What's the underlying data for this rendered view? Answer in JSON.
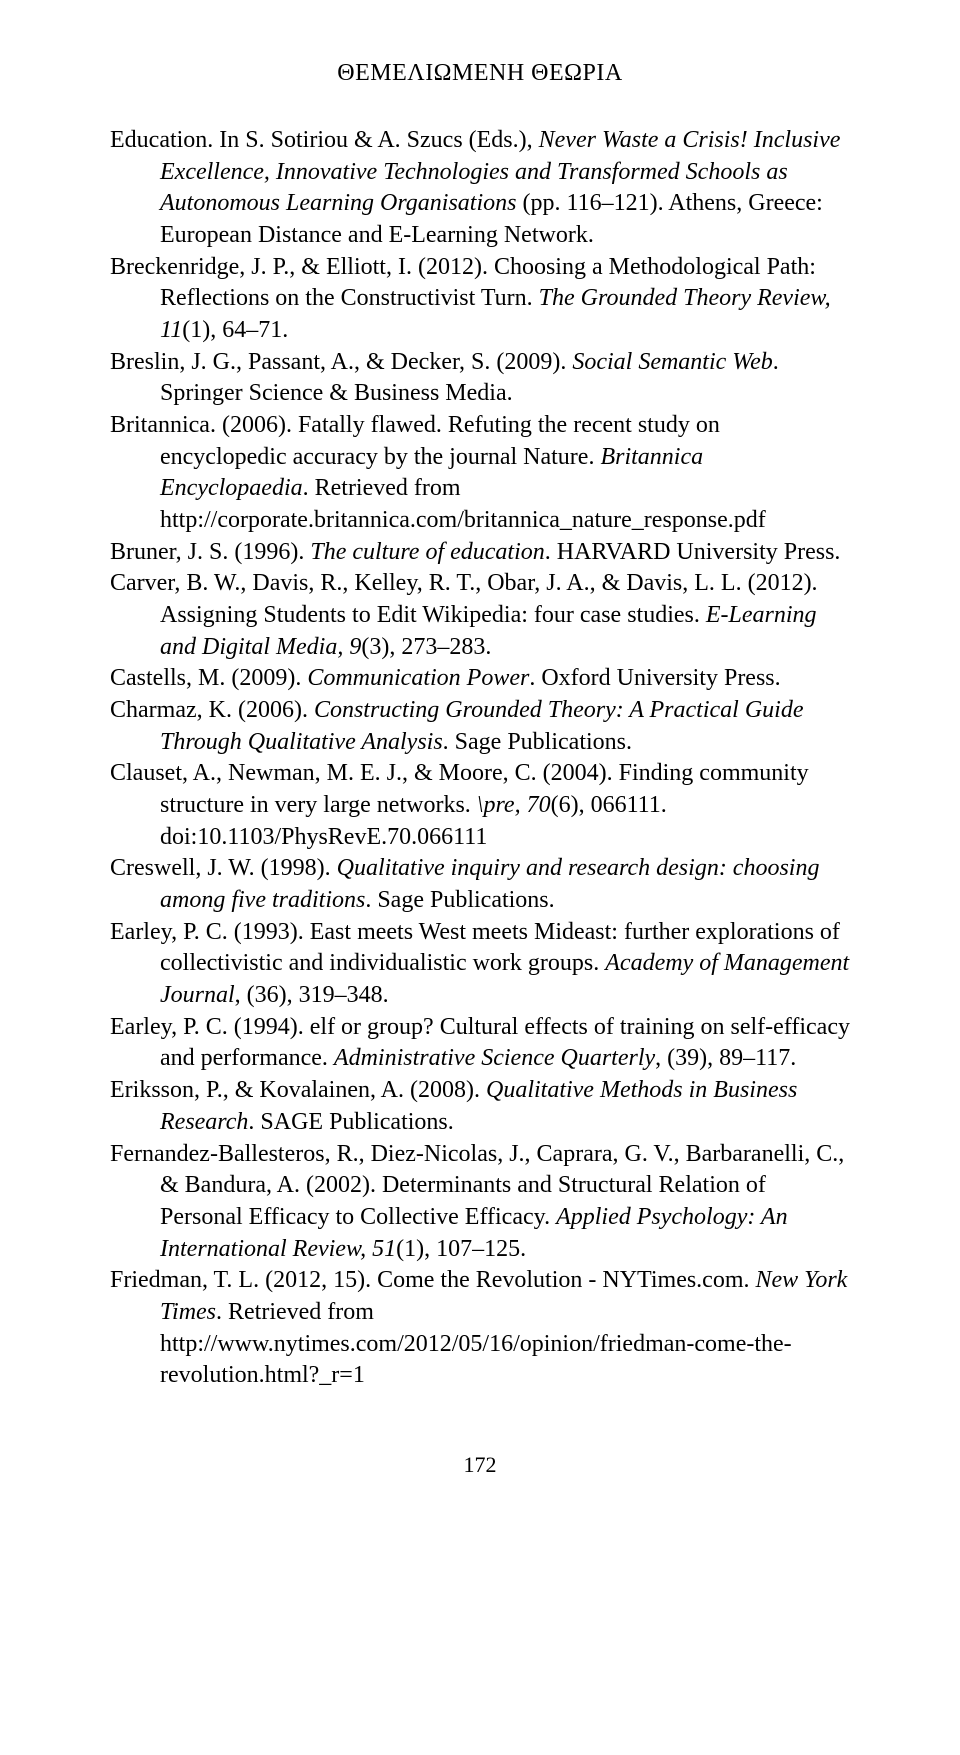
{
  "header": "ΘΕΜΕΛΙΩΜΕΝΗ ΘΕΩΡΙΑ",
  "page_number": "172",
  "references": [
    {
      "parts": [
        {
          "t": "Education. In S. Sotiriou & A. Szucs (Eds.), ",
          "i": false
        },
        {
          "t": "Never Waste a Crisis! Inclusive Excellence, Innovative Technologies and Transformed Schools as Autonomous Learning Organisations",
          "i": true
        },
        {
          "t": " (pp. 116–121). Athens, Greece: European Distance and E-Learning Network.",
          "i": false
        }
      ]
    },
    {
      "parts": [
        {
          "t": "Breckenridge, J. P., & Elliott, I. (2012). Choosing a Methodological Path: Reflections on the Constructivist Turn. ",
          "i": false
        },
        {
          "t": "The Grounded Theory Review, 11",
          "i": true
        },
        {
          "t": "(1), 64–71.",
          "i": false
        }
      ]
    },
    {
      "parts": [
        {
          "t": "Breslin, J. G., Passant, A., & Decker, S. (2009). ",
          "i": false
        },
        {
          "t": "Social Semantic Web",
          "i": true
        },
        {
          "t": ". Springer Science & Business Media.",
          "i": false
        }
      ]
    },
    {
      "parts": [
        {
          "t": "Britannica. (2006). Fatally flawed. Refuting the recent study on encyclopedic accuracy by the journal Nature. ",
          "i": false
        },
        {
          "t": "Britannica Encyclopaedia",
          "i": true
        },
        {
          "t": ". Retrieved from http://corporate.britannica.com/britannica_nature_response.pdf",
          "i": false
        }
      ]
    },
    {
      "parts": [
        {
          "t": "Bruner, J. S. (1996). ",
          "i": false
        },
        {
          "t": "The culture of education",
          "i": true
        },
        {
          "t": ". HARVARD University Press.",
          "i": false
        }
      ]
    },
    {
      "parts": [
        {
          "t": "Carver, B. W., Davis, R., Kelley, R. T., Obar, J. A., & Davis, L. L. (2012). Assigning Students to Edit Wikipedia: four case studies. ",
          "i": false
        },
        {
          "t": "E-Learning and Digital Media, 9",
          "i": true
        },
        {
          "t": "(3), 273–283.",
          "i": false
        }
      ]
    },
    {
      "parts": [
        {
          "t": "Castells, M. (2009). ",
          "i": false
        },
        {
          "t": "Communication Power",
          "i": true
        },
        {
          "t": ". Oxford University Press.",
          "i": false
        }
      ]
    },
    {
      "parts": [
        {
          "t": "Charmaz, K. (2006). ",
          "i": false
        },
        {
          "t": "Constructing Grounded Theory: A Practical Guide Through Qualitative Analysis",
          "i": true
        },
        {
          "t": ". Sage Publications.",
          "i": false
        }
      ]
    },
    {
      "parts": [
        {
          "t": "Clauset, A., Newman, M. E. J., & Moore, C. (2004). Finding community structure in very large networks. ",
          "i": false
        },
        {
          "t": "\\pre, 70",
          "i": true
        },
        {
          "t": "(6), 066111. doi:10.1103/PhysRevE.70.066111",
          "i": false
        }
      ]
    },
    {
      "parts": [
        {
          "t": "Creswell, J. W. (1998). ",
          "i": false
        },
        {
          "t": "Qualitative inquiry and research design: choosing among five traditions",
          "i": true
        },
        {
          "t": ". Sage Publications.",
          "i": false
        }
      ]
    },
    {
      "parts": [
        {
          "t": "Earley, P. C. (1993). East meets West meets Mideast: further explorations of collectivistic and individualistic work groups. ",
          "i": false
        },
        {
          "t": "Academy of Management Journal",
          "i": true
        },
        {
          "t": ", (36), 319–348.",
          "i": false
        }
      ]
    },
    {
      "parts": [
        {
          "t": "Earley, P. C. (1994). elf or group? Cultural effects of training on self-efficacy and performance. ",
          "i": false
        },
        {
          "t": "Administrative Science Quarterly",
          "i": true
        },
        {
          "t": ", (39), 89–117.",
          "i": false
        }
      ]
    },
    {
      "parts": [
        {
          "t": "Eriksson, P., & Kovalainen, A. (2008). ",
          "i": false
        },
        {
          "t": "Qualitative Methods in Business Research",
          "i": true
        },
        {
          "t": ". SAGE Publications.",
          "i": false
        }
      ]
    },
    {
      "parts": [
        {
          "t": "Fernandez-Ballesteros, R., Diez-Nicolas, J., Caprara, G. V., Barbaranelli, C., & Bandura, A. (2002). Determinants and Structural Relation of Personal Efficacy to Collective Efficacy. ",
          "i": false
        },
        {
          "t": "Applied Psychology: An International Review, 51",
          "i": true
        },
        {
          "t": "(1), 107–125.",
          "i": false
        }
      ]
    },
    {
      "parts": [
        {
          "t": "Friedman, T. L. (2012, 15). Come the Revolution - NYTimes.com. ",
          "i": false
        },
        {
          "t": "New York Times",
          "i": true
        },
        {
          "t": ". Retrieved from http://www.nytimes.com/2012/05/16/opinion/friedman-come-the-revolution.html?_r=1",
          "i": false
        }
      ]
    }
  ]
}
